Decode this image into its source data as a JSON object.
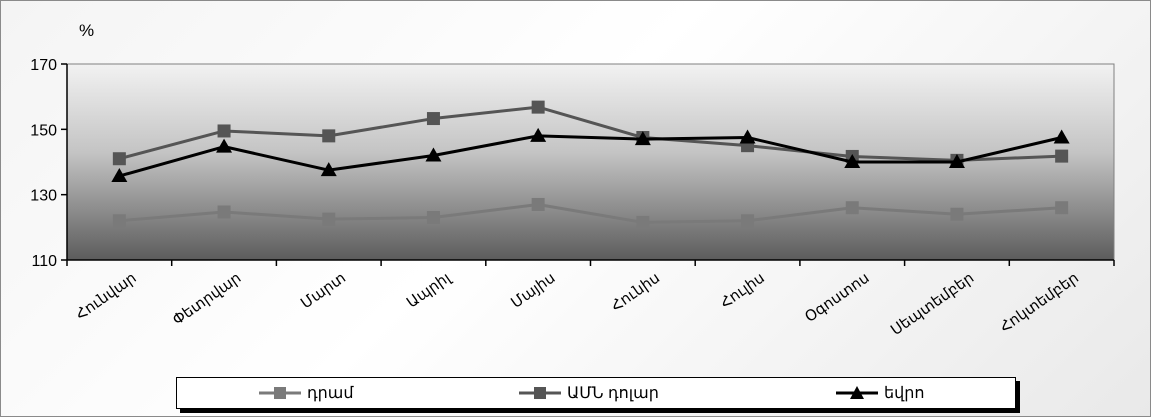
{
  "chart_data": {
    "type": "line",
    "y_unit_label": "%",
    "categories": [
      "Հունվար",
      "Փետրվար",
      "Մարտ",
      "Ապրիլ",
      "Մայիս",
      "Հունիս",
      "Հուլիս",
      "Օգոստոս",
      "Սեպտեմբեր",
      "Հոկտեմբեր"
    ],
    "ylim": [
      110,
      170
    ],
    "yticks": [
      "110",
      "130",
      "150",
      "170"
    ],
    "series": [
      {
        "name": "դրամ",
        "color": "#7a7a7a",
        "marker": "square",
        "values": [
          122,
          124.7,
          122.5,
          123,
          127,
          121.5,
          122,
          126,
          124,
          126
        ]
      },
      {
        "name": "ԱՄՆ դոլար",
        "color": "#555555",
        "marker": "square",
        "values": [
          141,
          149.5,
          148,
          153.3,
          156.8,
          147.5,
          145,
          141.7,
          140.5,
          141.8
        ]
      },
      {
        "name": "եվրո",
        "color": "#000000",
        "marker": "triangle",
        "values": [
          135.7,
          144.7,
          137.5,
          142,
          148,
          147,
          147.5,
          140,
          140,
          147.5
        ]
      }
    ],
    "legend_position": "bottom",
    "grid": false
  }
}
